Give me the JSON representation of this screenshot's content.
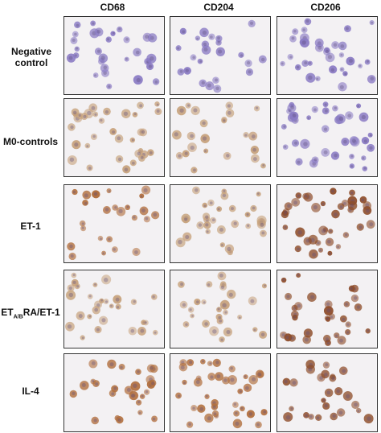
{
  "columns": [
    "CD68",
    "CD204",
    "CD206"
  ],
  "rows": [
    {
      "label": "Negative control",
      "label_parts": null
    },
    {
      "label": "M0-controls",
      "label_parts": null
    },
    {
      "label": "ET-1",
      "label_parts": null
    },
    {
      "label": "ETA/BRA/ET-1",
      "label_parts": {
        "pre": "ET",
        "sub": "A/B",
        "post": "RA/ET-1"
      }
    },
    {
      "label": "IL-4",
      "label_parts": null
    }
  ],
  "panel_background": "#f3f1f3",
  "stain_colors": {
    "hematoxylin": "#8a7bc4",
    "light_brown": "#c7a27c",
    "brown": "#b2703f",
    "dark_brown": "#8e4d2a"
  }
}
